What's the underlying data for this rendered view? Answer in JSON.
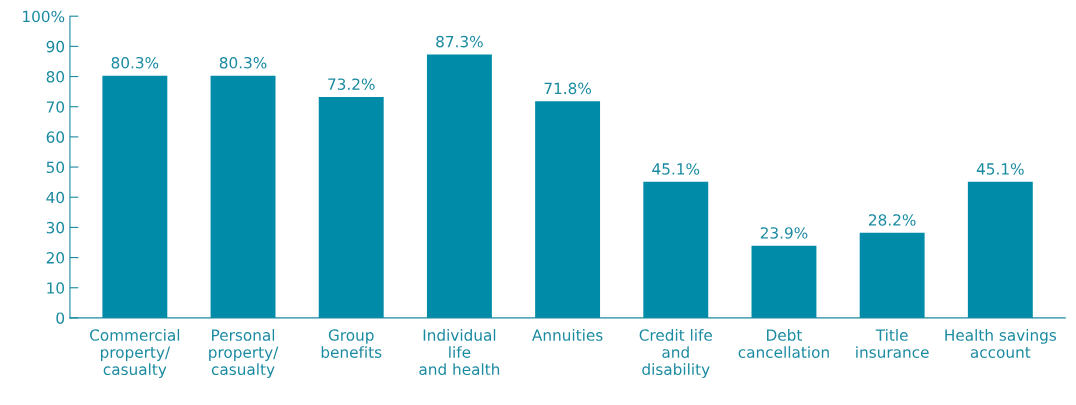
{
  "chart_data": {
    "type": "bar",
    "categories": [
      "Commercial\nproperty/\ncasualty",
      "Personal\nproperty/\ncasualty",
      "Group\nbenefits",
      "Individual\nlife\nand health",
      "Annuities",
      "Credit life\nand\ndisability",
      "Debt\ncancellation",
      "Title\ninsurance",
      "Health savings\naccount"
    ],
    "values": [
      80.3,
      80.3,
      73.2,
      87.3,
      71.8,
      45.1,
      23.9,
      28.2,
      45.1
    ],
    "value_labels": [
      "80.3%",
      "80.3%",
      "73.2%",
      "87.3%",
      "71.8%",
      "45.1%",
      "23.9%",
      "28.2%",
      "45.1%"
    ],
    "color": "#008ca8",
    "ylim": [
      0,
      100
    ],
    "yticks": [
      0,
      10,
      20,
      30,
      40,
      50,
      60,
      70,
      80,
      90,
      {
        "value": 100,
        "label": "100%"
      }
    ],
    "grid": false,
    "legend": false
  }
}
